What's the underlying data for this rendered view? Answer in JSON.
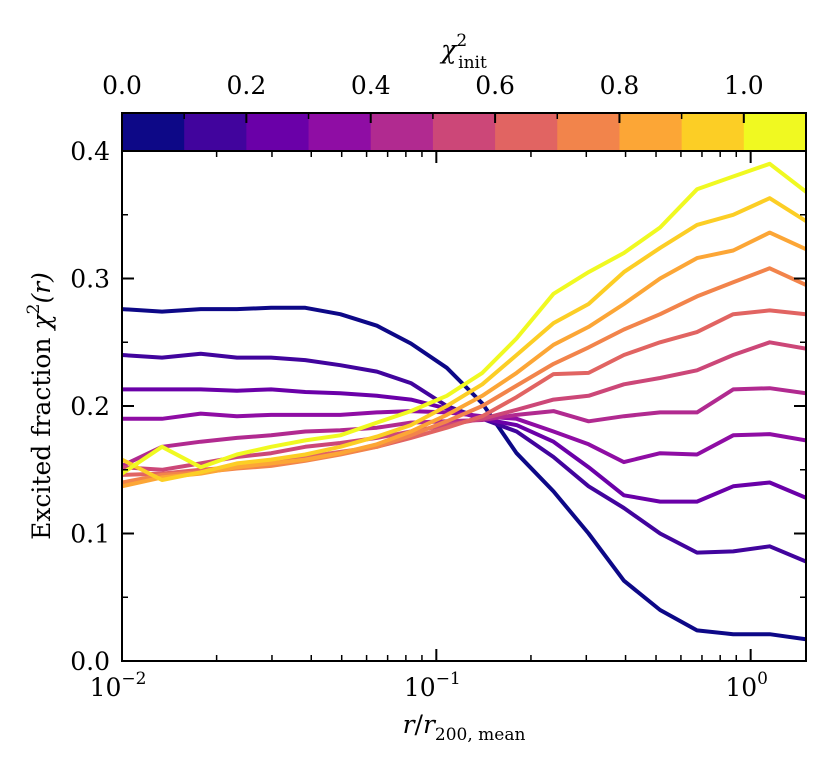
{
  "chart_data": {
    "type": "line",
    "title": "",
    "xlabel_parts": {
      "r": "r",
      "slash": "/",
      "r2": "r",
      "sub": "200, mean"
    },
    "ylabel_parts": {
      "text": "Excited fraction ",
      "chi": "χ",
      "sup": "2",
      "arg": "(r)"
    },
    "xscale": "log",
    "xlim": [
      0.01,
      1.5
    ],
    "ylim": [
      0.0,
      0.4
    ],
    "yticks": [
      {
        "value": 0.0,
        "label": "0.0"
      },
      {
        "value": 0.1,
        "label": "0.1"
      },
      {
        "value": 0.2,
        "label": "0.2"
      },
      {
        "value": 0.3,
        "label": "0.3"
      },
      {
        "value": 0.4,
        "label": "0.4"
      }
    ],
    "xticks": [
      {
        "value": 0.01,
        "base": "10",
        "exp": "−2"
      },
      {
        "value": 0.1,
        "base": "10",
        "exp": "−1"
      },
      {
        "value": 1.0,
        "base": "10",
        "exp": "0"
      }
    ],
    "colorbar": {
      "title_chi": "χ",
      "title_sup": "2",
      "title_sub": "init",
      "range": [
        0.0,
        1.1
      ],
      "ticks": [
        {
          "value": 0.0,
          "label": "0.0"
        },
        {
          "value": 0.2,
          "label": "0.2"
        },
        {
          "value": 0.4,
          "label": "0.4"
        },
        {
          "value": 0.6,
          "label": "0.6"
        },
        {
          "value": 0.8,
          "label": "0.8"
        },
        {
          "value": 1.0,
          "label": "1.0"
        }
      ],
      "colors": [
        "#0d0887",
        "#41049d",
        "#6a00a8",
        "#8f0da4",
        "#b12a90",
        "#cc4778",
        "#e16462",
        "#f2844b",
        "#fca636",
        "#fcce25",
        "#f0f921"
      ]
    },
    "x": [
      0.01,
      0.0134,
      0.0178,
      0.0232,
      0.0298,
      0.0383,
      0.0495,
      0.0647,
      0.083,
      0.108,
      0.14,
      0.18,
      0.236,
      0.305,
      0.395,
      0.515,
      0.675,
      0.88,
      1.15,
      1.5
    ],
    "series": [
      {
        "name": "0.0",
        "color": "#0d0887",
        "values": [
          0.276,
          0.274,
          0.276,
          0.276,
          0.277,
          0.277,
          0.272,
          0.263,
          0.249,
          0.23,
          0.202,
          0.163,
          0.133,
          0.1,
          0.063,
          0.04,
          0.024,
          0.021,
          0.021,
          0.017
        ]
      },
      {
        "name": "0.1",
        "color": "#41049d",
        "values": [
          0.24,
          0.238,
          0.241,
          0.238,
          0.238,
          0.236,
          0.232,
          0.227,
          0.218,
          0.2,
          0.19,
          0.18,
          0.16,
          0.137,
          0.12,
          0.1,
          0.085,
          0.086,
          0.09,
          0.078
        ]
      },
      {
        "name": "0.2",
        "color": "#6a00a8",
        "values": [
          0.213,
          0.213,
          0.213,
          0.212,
          0.213,
          0.211,
          0.21,
          0.208,
          0.205,
          0.198,
          0.19,
          0.185,
          0.172,
          0.152,
          0.13,
          0.125,
          0.125,
          0.137,
          0.14,
          0.128
        ]
      },
      {
        "name": "0.3",
        "color": "#8f0da4",
        "values": [
          0.19,
          0.19,
          0.194,
          0.192,
          0.193,
          0.193,
          0.193,
          0.195,
          0.196,
          0.195,
          0.192,
          0.19,
          0.18,
          0.17,
          0.156,
          0.163,
          0.162,
          0.177,
          0.178,
          0.173
        ]
      },
      {
        "name": "0.4",
        "color": "#b12a90",
        "values": [
          0.153,
          0.168,
          0.172,
          0.175,
          0.177,
          0.18,
          0.181,
          0.183,
          0.187,
          0.188,
          0.189,
          0.193,
          0.196,
          0.188,
          0.192,
          0.195,
          0.195,
          0.213,
          0.214,
          0.21
        ]
      },
      {
        "name": "0.5",
        "color": "#cc4778",
        "values": [
          0.152,
          0.15,
          0.155,
          0.16,
          0.163,
          0.168,
          0.171,
          0.175,
          0.18,
          0.185,
          0.19,
          0.197,
          0.205,
          0.208,
          0.217,
          0.222,
          0.228,
          0.24,
          0.25,
          0.245
        ]
      },
      {
        "name": "0.6",
        "color": "#e16462",
        "values": [
          0.146,
          0.147,
          0.15,
          0.152,
          0.155,
          0.16,
          0.164,
          0.168,
          0.175,
          0.183,
          0.192,
          0.207,
          0.225,
          0.226,
          0.24,
          0.25,
          0.258,
          0.272,
          0.275,
          0.272
        ]
      },
      {
        "name": "0.7",
        "color": "#f2844b",
        "values": [
          0.14,
          0.146,
          0.148,
          0.151,
          0.153,
          0.157,
          0.162,
          0.168,
          0.177,
          0.188,
          0.2,
          0.216,
          0.233,
          0.246,
          0.26,
          0.272,
          0.286,
          0.297,
          0.308,
          0.295
        ]
      },
      {
        "name": "0.8",
        "color": "#fca636",
        "values": [
          0.137,
          0.144,
          0.147,
          0.152,
          0.155,
          0.158,
          0.163,
          0.17,
          0.18,
          0.193,
          0.208,
          0.226,
          0.248,
          0.262,
          0.28,
          0.3,
          0.316,
          0.322,
          0.336,
          0.323
        ]
      },
      {
        "name": "0.9",
        "color": "#fcce25",
        "values": [
          0.158,
          0.142,
          0.148,
          0.155,
          0.158,
          0.162,
          0.168,
          0.176,
          0.185,
          0.2,
          0.217,
          0.24,
          0.265,
          0.28,
          0.305,
          0.324,
          0.342,
          0.35,
          0.363,
          0.345
        ]
      },
      {
        "name": "1.0",
        "color": "#f0f921",
        "values": [
          0.147,
          0.168,
          0.152,
          0.162,
          0.168,
          0.173,
          0.177,
          0.187,
          0.196,
          0.208,
          0.226,
          0.253,
          0.288,
          0.305,
          0.32,
          0.34,
          0.37,
          0.38,
          0.39,
          0.368
        ]
      }
    ]
  }
}
